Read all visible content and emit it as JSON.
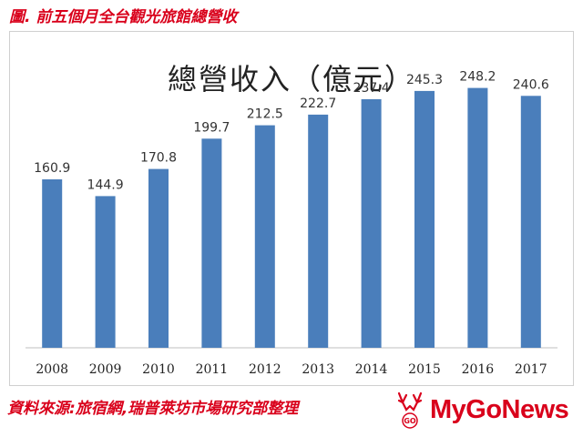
{
  "caption": "圖. 前五個月全台觀光旅館總營收",
  "source": "資料來源:旅宿網,瑞普萊坊市場研究部整理",
  "logo": {
    "text": "MyGoNews",
    "mark_text": "GO"
  },
  "colors": {
    "bar": "#4a7ebb",
    "accent": "#d9001b",
    "axis": "#bfbfbf"
  },
  "chart_data": {
    "type": "bar",
    "title": "總營收入（億元）",
    "xlabel": "",
    "ylabel": "",
    "categories": [
      "2008",
      "2009",
      "2010",
      "2011",
      "2012",
      "2013",
      "2014",
      "2015",
      "2016",
      "2017"
    ],
    "values": [
      160.9,
      144.9,
      170.8,
      199.7,
      212.5,
      222.7,
      237.4,
      245.3,
      248.2,
      240.6
    ],
    "data_labels": [
      "160.9",
      "144.9",
      "170.8",
      "199.7",
      "212.5",
      "222.7",
      "237.4",
      "245.3",
      "248.2",
      "240.6"
    ],
    "ylim": [
      0,
      280
    ],
    "grid": false,
    "legend": "none"
  }
}
